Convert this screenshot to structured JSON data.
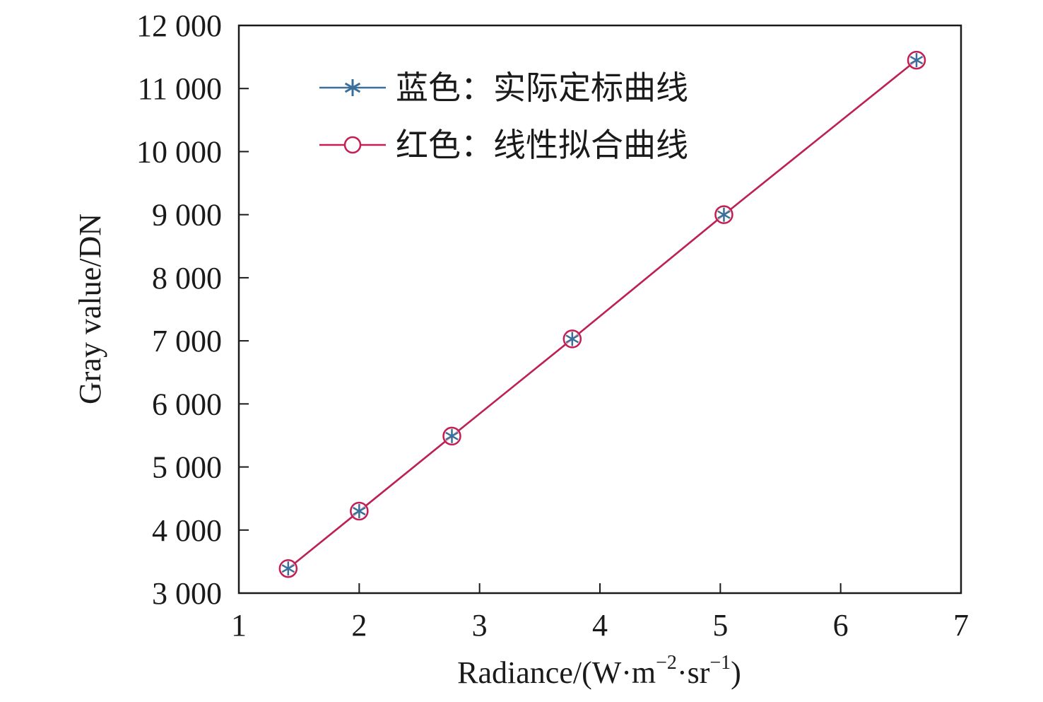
{
  "chart_data": {
    "type": "line",
    "title": "",
    "xlabel": "Radiance/(W·m",
    "xlabel_sup1": "−2",
    "xlabel_mid": "·sr",
    "xlabel_sup2": "−1",
    "xlabel_end": ")",
    "ylabel": "Gray value/DN",
    "xlim": [
      1,
      7
    ],
    "ylim": [
      3000,
      12000
    ],
    "x_ticks": [
      1,
      2,
      3,
      4,
      5,
      6,
      7
    ],
    "x_tick_labels": [
      "1",
      "2",
      "3",
      "4",
      "5",
      "6",
      "7"
    ],
    "y_ticks": [
      3000,
      4000,
      5000,
      6000,
      7000,
      8000,
      9000,
      10000,
      11000,
      12000
    ],
    "y_tick_labels": [
      "3 000",
      "4 000",
      "5 000",
      "6 000",
      "7 000",
      "8 000",
      "9 000",
      "10 000",
      "11 000",
      "12 000"
    ],
    "grid": false,
    "legend_position": "top-left",
    "series": [
      {
        "name": "蓝色：实际定标曲线",
        "marker": "asterisk",
        "color": "#3a6f9c",
        "x": [
          1.41,
          2.0,
          2.77,
          3.77,
          5.03,
          6.63
        ],
        "y": [
          3390,
          4300,
          5490,
          7030,
          9000,
          11450
        ]
      },
      {
        "name": "红色：线性拟合曲线",
        "marker": "circle",
        "color": "#c41e52",
        "x": [
          1.41,
          2.0,
          2.77,
          3.77,
          5.03,
          6.63
        ],
        "y": [
          3390,
          4300,
          5490,
          7030,
          9000,
          11450
        ]
      }
    ]
  }
}
